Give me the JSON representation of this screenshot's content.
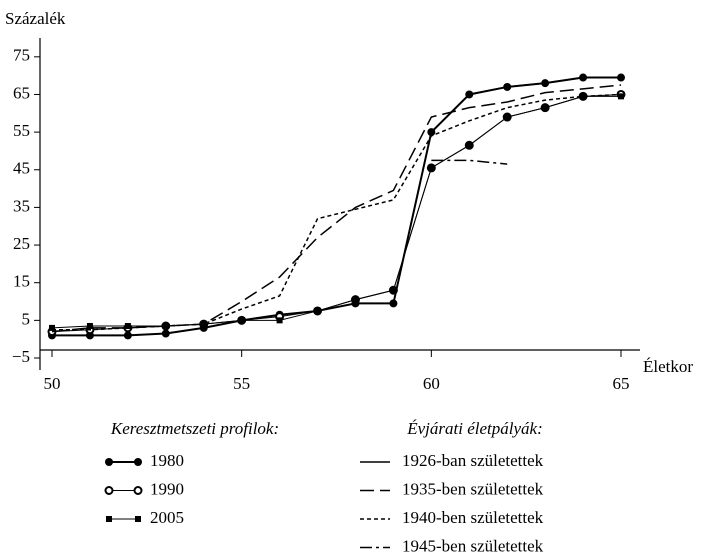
{
  "chart_data": {
    "type": "line",
    "y_label": "Százalék",
    "x_label": "Életkor",
    "x": [
      50,
      51,
      52,
      53,
      54,
      55,
      56,
      57,
      58,
      59,
      60,
      61,
      62,
      63,
      64,
      65
    ],
    "xlim": [
      50,
      65
    ],
    "xticks": [
      50,
      55,
      60,
      65
    ],
    "ylim": [
      -5,
      80
    ],
    "yticks": [
      {
        "value": -5,
        "label": "−5"
      },
      5,
      15,
      25,
      35,
      45,
      55,
      65,
      75
    ],
    "legend_titles": [
      "Keresztmetszeti profilok:",
      "Évjárati életpályák:"
    ],
    "series": [
      {
        "name": "1980",
        "color": "#000000",
        "line_style": "solid-thick",
        "marker": "filled-circle",
        "values": [
          1,
          1,
          1,
          1.5,
          3,
          5,
          6.5,
          7.5,
          9.5,
          9.5,
          55,
          65,
          67,
          68,
          69.5,
          69.5
        ]
      },
      {
        "name": "1990",
        "color": "#000000",
        "line_style": "solid-thin",
        "marker": "open-circle",
        "values": [
          2,
          2.5,
          3,
          3.5,
          4,
          5,
          6,
          7.5,
          10.5,
          13,
          45.5,
          51.5,
          59,
          61.5,
          64.5,
          65
        ]
      },
      {
        "name": "2005",
        "color": "#000000",
        "line_style": "solid-thin",
        "marker": "filled-square",
        "values": [
          3,
          3.5,
          3.5,
          3.5,
          4,
          5,
          5,
          7.5,
          10.5,
          13,
          45.5,
          51.5,
          59,
          61.5,
          64.5,
          64.5
        ]
      },
      {
        "name": "1926-ban születettek",
        "color": "#000000",
        "line_style": "solid",
        "values": [
          null,
          null,
          null,
          null,
          null,
          null,
          null,
          null,
          null,
          null,
          55,
          65,
          67,
          68,
          69.5,
          69.5
        ]
      },
      {
        "name": "1935-ben születettek",
        "color": "#000000",
        "line_style": "long-dash",
        "values": [
          2,
          3,
          3,
          3.5,
          4,
          10,
          16.5,
          27,
          35,
          39.5,
          59,
          61.5,
          63,
          65.5,
          66.5,
          67.5
        ]
      },
      {
        "name": "1940-ben születettek",
        "color": "#000000",
        "line_style": "dotted",
        "values": [
          2.5,
          2.5,
          3,
          3.5,
          4,
          8,
          11.5,
          32,
          34.5,
          37,
          54,
          58,
          61.5,
          63.5,
          64.5,
          65
        ]
      },
      {
        "name": "1945-ben születettek",
        "color": "#000000",
        "line_style": "dash-dot",
        "values": [
          null,
          null,
          null,
          null,
          null,
          null,
          null,
          null,
          null,
          null,
          47.5,
          47.5,
          46.5,
          null,
          null,
          null
        ]
      }
    ]
  }
}
